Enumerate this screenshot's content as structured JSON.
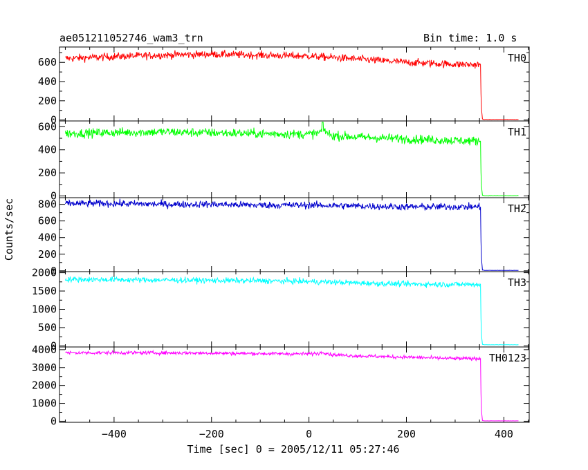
{
  "header": {
    "title": "ae051211052746_wam3_trn",
    "bin_time": "Bin time: 1.0 s"
  },
  "chart_data": {
    "type": "line",
    "title": "ae051211052746_wam3_trn",
    "subtitle": "Bin time: 1.0 s",
    "xlabel": "Time [sec] 0 = 2005/12/11 05:27:46",
    "ylabel": "Counts/sec",
    "xlim": [
      -512,
      452
    ],
    "x_ticks": [
      -400,
      -200,
      0,
      200,
      400
    ],
    "grid": false,
    "panels": [
      {
        "name": "TH0",
        "color": "#ff0000",
        "ylim": [
          -10,
          760
        ],
        "y_ticks": [
          0,
          200,
          400,
          600
        ],
        "noise": 28,
        "x": [
          -500,
          -400,
          -300,
          -200,
          -100,
          0,
          100,
          200,
          300,
          352,
          352,
          354,
          356,
          360,
          430
        ],
        "y": [
          640,
          660,
          675,
          685,
          675,
          665,
          635,
          600,
          580,
          575,
          420,
          120,
          10,
          5,
          5
        ]
      },
      {
        "name": "TH1",
        "color": "#00ff00",
        "ylim": [
          -15,
          650
        ],
        "y_ticks": [
          0,
          200,
          400,
          600
        ],
        "noise": 28,
        "x": [
          -500,
          -400,
          -300,
          -200,
          -100,
          0,
          20,
          30,
          45,
          100,
          200,
          300,
          352,
          352,
          354,
          356,
          360,
          430
        ],
        "y": [
          540,
          550,
          555,
          548,
          540,
          535,
          545,
          575,
          525,
          510,
          495,
          480,
          475,
          320,
          90,
          5,
          2,
          2
        ],
        "spikes": [
          {
            "x": 28,
            "y": 640
          }
        ]
      },
      {
        "name": "TH2",
        "color": "#0000cc",
        "ylim": [
          -10,
          880
        ],
        "y_ticks": [
          0,
          200,
          400,
          600,
          800
        ],
        "noise": 30,
        "x": [
          -500,
          -400,
          -300,
          -200,
          -100,
          0,
          100,
          200,
          300,
          352,
          352,
          354,
          356,
          360,
          430
        ],
        "y": [
          810,
          810,
          800,
          800,
          790,
          790,
          780,
          770,
          770,
          770,
          560,
          150,
          10,
          5,
          5
        ]
      },
      {
        "name": "TH3",
        "color": "#00ffff",
        "ylim": [
          -30,
          2030
        ],
        "y_ticks": [
          0,
          500,
          1000,
          1500,
          2000
        ],
        "noise": 55,
        "x": [
          -500,
          -400,
          -300,
          -200,
          -100,
          0,
          100,
          200,
          300,
          352,
          352,
          354,
          356,
          360,
          430
        ],
        "y": [
          1820,
          1810,
          1800,
          1790,
          1780,
          1760,
          1720,
          1690,
          1680,
          1680,
          1200,
          300,
          40,
          30,
          30
        ]
      },
      {
        "name": "TH0123",
        "color": "#ff00ff",
        "ylim": [
          -60,
          4150
        ],
        "y_ticks": [
          0,
          1000,
          2000,
          3000,
          4000
        ],
        "noise": 70,
        "x": [
          -500,
          -400,
          -300,
          -200,
          -100,
          0,
          20,
          30,
          45,
          100,
          200,
          300,
          352,
          352,
          354,
          356,
          360,
          430
        ],
        "y": [
          3820,
          3830,
          3820,
          3810,
          3780,
          3760,
          3800,
          3870,
          3720,
          3650,
          3580,
          3500,
          3500,
          2500,
          600,
          40,
          20,
          20
        ]
      }
    ]
  }
}
